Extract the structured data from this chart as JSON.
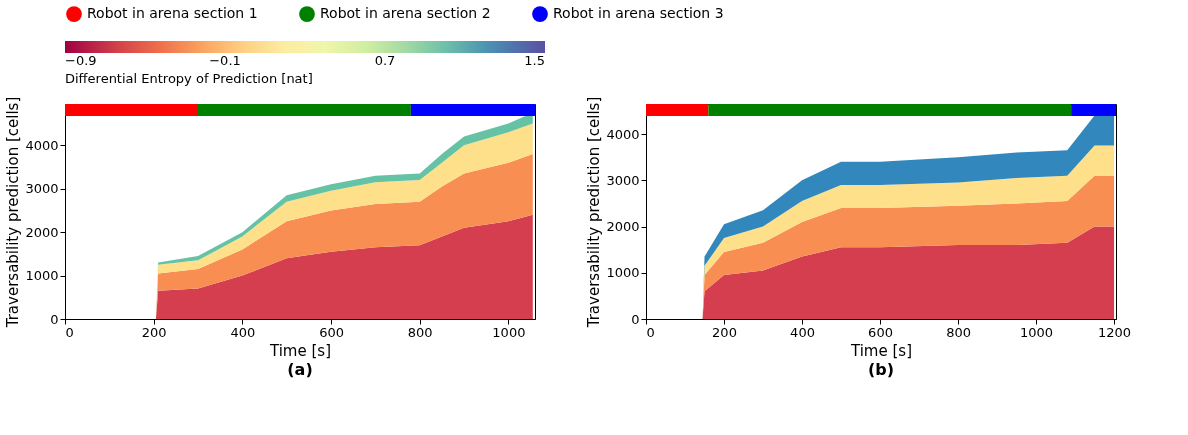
{
  "chart_data": [
    {
      "type": "area",
      "stacked": true,
      "title": "(a)",
      "xlabel": "Time [s]",
      "ylabel": "Traversability prediction [cells]",
      "clabel": "Differential Entropy of Prediction [nat]",
      "clim": [
        -0.9,
        1.5
      ],
      "cticks": [
        {
          "value": -0.9,
          "label": "−0.9"
        },
        {
          "value": -0.1,
          "label": "−0.1"
        },
        0.7,
        1.5
      ],
      "legend": "top",
      "grid": false,
      "x": [
        0,
        205,
        210,
        300,
        400,
        500,
        600,
        700,
        800,
        850,
        900,
        1000,
        1055
      ],
      "series": [
        {
          "color": "#d53e4f",
          "values": [
            0,
            0,
            650,
            700,
            1000,
            1400,
            1550,
            1650,
            1700,
            1900,
            2100,
            2250,
            2400
          ]
        },
        {
          "color": "#f98e52",
          "values": [
            0,
            0,
            400,
            450,
            600,
            850,
            950,
            1000,
            1000,
            1150,
            1250,
            1350,
            1400
          ]
        },
        {
          "color": "#fee08b",
          "values": [
            0,
            0,
            200,
            200,
            300,
            450,
            450,
            500,
            500,
            550,
            650,
            700,
            700
          ]
        },
        {
          "color": "#66c2a5",
          "values": [
            0,
            0,
            50,
            100,
            100,
            150,
            150,
            150,
            150,
            200,
            200,
            200,
            250
          ]
        }
      ],
      "bands": [
        {
          "axis": "x",
          "from": 0,
          "to": 300,
          "label": "Robot in arena section 1",
          "color": "#ff0000"
        },
        {
          "axis": "x",
          "from": 300,
          "to": 780,
          "label": "Robot in arena section 2",
          "color": "#008000"
        },
        {
          "axis": "x",
          "from": 780,
          "to": 1060,
          "label": "Robot in arena section 3",
          "color": "#0000ff"
        }
      ],
      "xlim": [
        0,
        1060
      ],
      "xticks": [
        0,
        200,
        400,
        600,
        800,
        1000
      ],
      "ylim": [
        0,
        4950
      ],
      "yticks": [
        0,
        1000,
        2000,
        3000,
        4000
      ]
    },
    {
      "type": "area",
      "stacked": true,
      "title": "(b)",
      "xlabel": "Time [s]",
      "ylabel": "Traversability prediction [cells]",
      "grid": false,
      "x": [
        0,
        145,
        150,
        200,
        300,
        400,
        500,
        600,
        800,
        950,
        1080,
        1150,
        1200
      ],
      "series": [
        {
          "color": "#d53e4f",
          "values": [
            0,
            0,
            600,
            950,
            1050,
            1350,
            1550,
            1550,
            1600,
            1600,
            1650,
            2000,
            2000
          ]
        },
        {
          "color": "#f98e52",
          "values": [
            0,
            0,
            350,
            500,
            600,
            750,
            850,
            850,
            850,
            900,
            900,
            1100,
            1100
          ]
        },
        {
          "color": "#fee08b",
          "values": [
            0,
            0,
            200,
            300,
            350,
            450,
            500,
            500,
            500,
            550,
            550,
            650,
            650
          ]
        },
        {
          "color": "#3288bd",
          "values": [
            0,
            0,
            200,
            300,
            350,
            450,
            500,
            500,
            550,
            550,
            550,
            650,
            650
          ]
        }
      ],
      "bands": [
        {
          "axis": "x",
          "from": 0,
          "to": 160,
          "color": "#ff0000"
        },
        {
          "axis": "x",
          "from": 160,
          "to": 1090,
          "color": "#008000"
        },
        {
          "axis": "x",
          "from": 1090,
          "to": 1205,
          "color": "#0000ff"
        }
      ],
      "xlim": [
        0,
        1205
      ],
      "xticks": [
        0,
        200,
        400,
        600,
        800,
        1000,
        1200
      ],
      "ylim": [
        0,
        4650
      ],
      "yticks": [
        0,
        1000,
        2000,
        3000,
        4000
      ]
    }
  ]
}
